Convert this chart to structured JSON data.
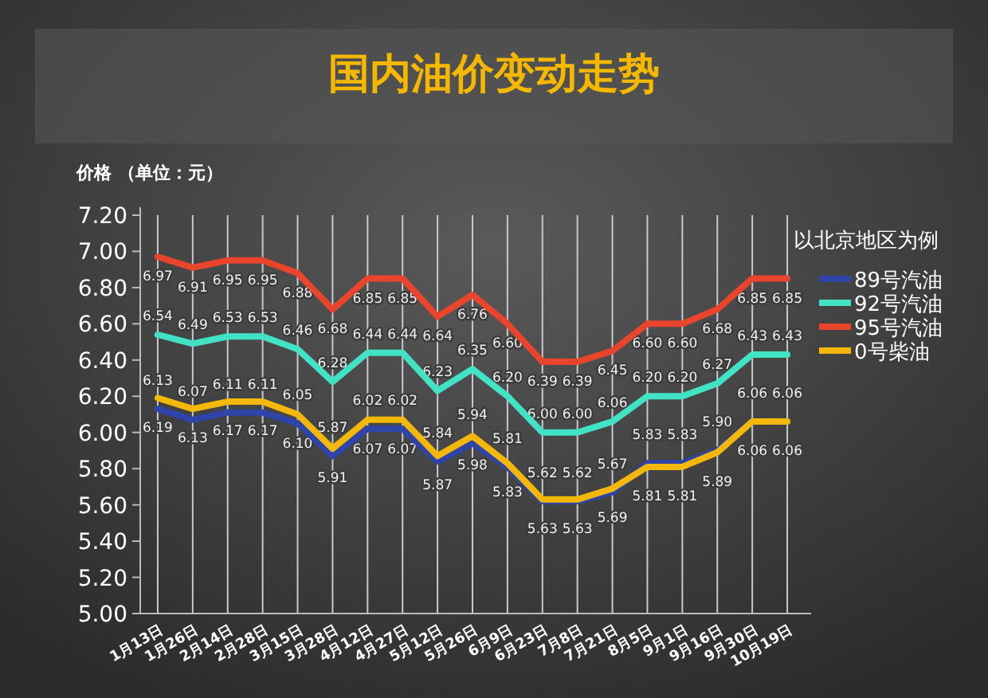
{
  "chart_data": {
    "type": "line",
    "title": "国内油价变动走势",
    "ylabel": "价格 （单位：元）",
    "legend_title": "以北京地区为例",
    "legend": "right",
    "grid": "x",
    "marker": "none",
    "line_style": "solid",
    "categories": [
      "1月13日",
      "1月26日",
      "2月14日",
      "2月28日",
      "3月15日",
      "3月28日",
      "4月12日",
      "4月27日",
      "5月12日",
      "5月26日",
      "6月9日",
      "6月23日",
      "7月8日",
      "7月21日",
      "8月5日",
      "9月1日",
      "9月16日",
      "9月30日",
      "10月19日"
    ],
    "ylim": [
      5.0,
      7.2
    ],
    "yticks": [
      {
        "value": 5.0,
        "label": "5.00"
      },
      {
        "value": 5.2,
        "label": "5.20"
      },
      {
        "value": 5.4,
        "label": "5.40"
      },
      {
        "value": 5.6,
        "label": "5.60"
      },
      {
        "value": 5.8,
        "label": "5.80"
      },
      {
        "value": 6.0,
        "label": "6.00"
      },
      {
        "value": 6.2,
        "label": "6.20"
      },
      {
        "value": 6.4,
        "label": "6.40"
      },
      {
        "value": 6.6,
        "label": "6.60"
      },
      {
        "value": 6.8,
        "label": "6.80"
      },
      {
        "value": 7.0,
        "label": "7.00"
      },
      {
        "value": 7.2,
        "label": "7.20"
      }
    ],
    "series": [
      {
        "name": "89号汽油",
        "color": "#2e44a8",
        "values": [
          6.13,
          6.07,
          6.11,
          6.11,
          6.05,
          5.87,
          6.02,
          6.02,
          5.84,
          5.94,
          5.81,
          5.62,
          5.62,
          5.67,
          5.83,
          5.83,
          5.9,
          6.06,
          6.06
        ],
        "value_labels": [
          "6.13",
          "6.07",
          "6.11",
          "6.11",
          "6.05",
          "5.87",
          "6.02",
          "6.02",
          "5.84",
          "5.94",
          "5.81",
          "5.62",
          "5.62",
          "5.67",
          "5.83",
          "5.83",
          "5.90",
          "6.06",
          "6.06"
        ]
      },
      {
        "name": "92号汽油",
        "color": "#42e3c4",
        "values": [
          6.54,
          6.49,
          6.53,
          6.53,
          6.46,
          6.28,
          6.44,
          6.44,
          6.23,
          6.35,
          6.2,
          6.0,
          6.0,
          6.06,
          6.2,
          6.2,
          6.27,
          6.43,
          6.43
        ],
        "value_labels": [
          "6.54",
          "6.49",
          "6.53",
          "6.53",
          "6.46",
          "6.28",
          "6.44",
          "6.44",
          "6.23",
          "6.35",
          "6.20",
          "6.00",
          "6.00",
          "6.06",
          "6.20",
          "6.20",
          "6.27",
          "6.43",
          "6.43"
        ]
      },
      {
        "name": "95号汽油",
        "color": "#e8452c",
        "values": [
          6.97,
          6.91,
          6.95,
          6.95,
          6.88,
          6.68,
          6.85,
          6.85,
          6.64,
          6.76,
          6.6,
          6.39,
          6.39,
          6.45,
          6.6,
          6.6,
          6.68,
          6.85,
          6.85
        ],
        "value_labels": [
          "6.97",
          "6.91",
          "6.95",
          "6.95",
          "6.88",
          "6.68",
          "6.85",
          "6.85",
          "6.64",
          "6.76",
          "6.60",
          "6.39",
          "6.39",
          "6.45",
          "6.60",
          "6.60",
          "6.68",
          "6.85",
          "6.85"
        ]
      },
      {
        "name": "0号柴油",
        "color": "#f4b80a",
        "values": [
          6.19,
          6.13,
          6.17,
          6.17,
          6.1,
          5.91,
          6.07,
          6.07,
          5.87,
          5.98,
          5.83,
          5.63,
          5.63,
          5.69,
          5.81,
          5.81,
          5.89,
          6.06,
          6.06
        ],
        "value_labels": [
          "6.19",
          "6.13",
          "6.17",
          "6.17",
          "6.10",
          "5.91",
          "6.07",
          "6.07",
          "5.87",
          "5.98",
          "5.83",
          "5.63",
          "5.63",
          "5.69",
          "5.81",
          "5.81",
          "5.89",
          "6.06",
          "6.06"
        ]
      }
    ]
  }
}
